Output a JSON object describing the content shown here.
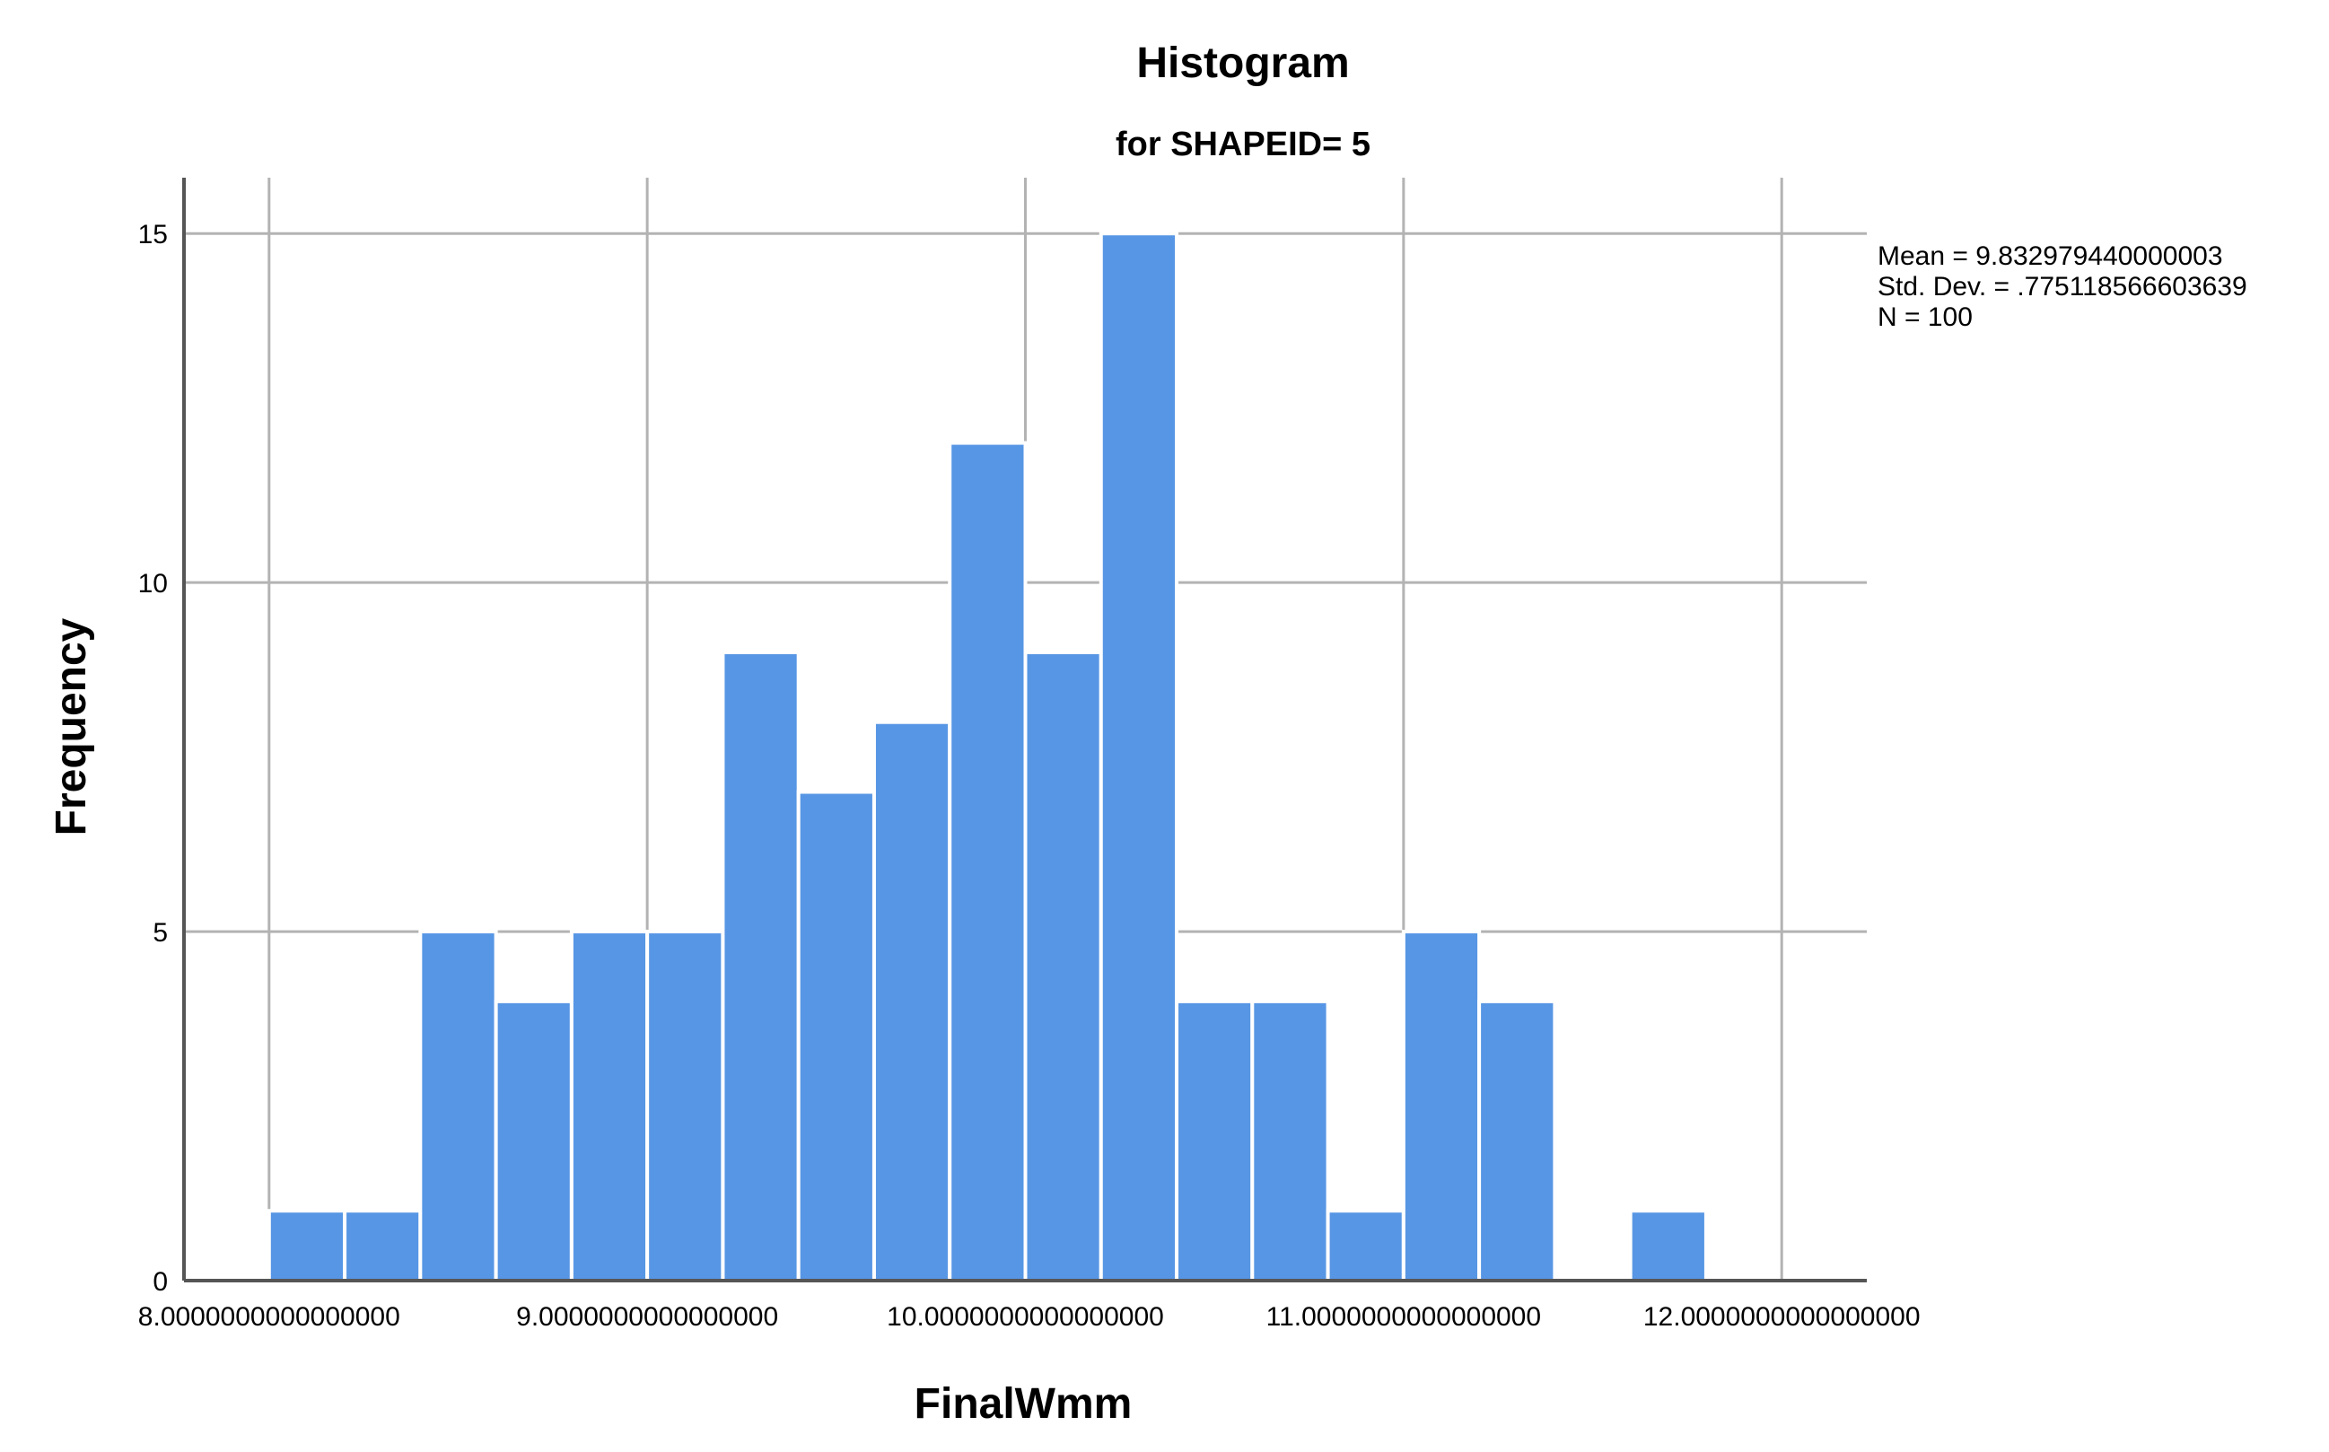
{
  "chart_data": {
    "type": "bar",
    "title": "Histogram",
    "subtitle": "for SHAPEID= 5",
    "xlabel": "FinalWmm",
    "ylabel": "Frequency",
    "xlim": [
      7.775,
      12.225
    ],
    "ylim": [
      0,
      15.8
    ],
    "x_ticks": [
      {
        "value": 8,
        "label": "8.0000000000000000"
      },
      {
        "value": 9,
        "label": "9.0000000000000000"
      },
      {
        "value": 10,
        "label": "10.0000000000000000"
      },
      {
        "value": 11,
        "label": "11.0000000000000000"
      },
      {
        "value": 12,
        "label": "12.0000000000000000"
      }
    ],
    "y_ticks": [
      {
        "value": 0,
        "label": "0"
      },
      {
        "value": 5,
        "label": "5"
      },
      {
        "value": 10,
        "label": "10"
      },
      {
        "value": 15,
        "label": "15"
      }
    ],
    "bin_width": 0.2,
    "bins": [
      {
        "start": 8.0,
        "end": 8.2,
        "count": 1
      },
      {
        "start": 8.2,
        "end": 8.4,
        "count": 1
      },
      {
        "start": 8.4,
        "end": 8.6,
        "count": 5
      },
      {
        "start": 8.6,
        "end": 8.8,
        "count": 4
      },
      {
        "start": 8.8,
        "end": 9.0,
        "count": 5
      },
      {
        "start": 9.0,
        "end": 9.2,
        "count": 5
      },
      {
        "start": 9.2,
        "end": 9.4,
        "count": 9
      },
      {
        "start": 9.4,
        "end": 9.6,
        "count": 7
      },
      {
        "start": 9.6,
        "end": 9.8,
        "count": 8
      },
      {
        "start": 9.8,
        "end": 10.0,
        "count": 12
      },
      {
        "start": 10.0,
        "end": 10.2,
        "count": 9
      },
      {
        "start": 10.2,
        "end": 10.4,
        "count": 15
      },
      {
        "start": 10.4,
        "end": 10.6,
        "count": 4
      },
      {
        "start": 10.6,
        "end": 10.8,
        "count": 4
      },
      {
        "start": 10.8,
        "end": 11.0,
        "count": 1
      },
      {
        "start": 11.0,
        "end": 11.2,
        "count": 5
      },
      {
        "start": 11.2,
        "end": 11.4,
        "count": 4
      },
      {
        "start": 11.4,
        "end": 11.6,
        "count": 0
      },
      {
        "start": 11.6,
        "end": 11.8,
        "count": 1
      }
    ],
    "stats": {
      "mean_text": "Mean = 9.832979440000003",
      "stddev_text": "Std. Dev. = .775118566603639",
      "n_text": "N = 100"
    },
    "grid": true,
    "legend_position": "right",
    "bar_color": "#5796E4",
    "bar_edge_color": "#ffffff",
    "grid_color": "#b3b3b3",
    "axis_color": "#555555",
    "text_color": "#000000"
  }
}
